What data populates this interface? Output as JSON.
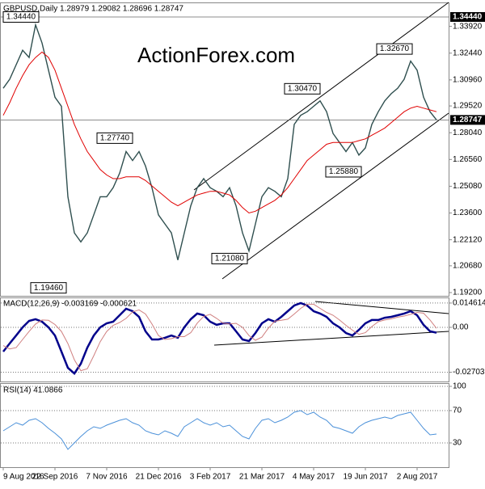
{
  "chart_data": [
    {
      "type": "line",
      "title": "GBPUSD,Daily  1.28979 1.29082 1.28696 1.28747",
      "watermark": "ActionForex.com",
      "ylim": [
        1.1902,
        1.352
      ],
      "yticks": [
        {
          "value": 1.3392,
          "label": "1.33920"
        },
        {
          "value": 1.3244,
          "label": "1.32440"
        },
        {
          "value": 1.3096,
          "label": "1.30960"
        },
        {
          "value": 1.2952,
          "label": "1.29520"
        },
        {
          "value": 1.2804,
          "label": "1.28040"
        },
        {
          "value": 1.2656,
          "label": "1.26560"
        },
        {
          "value": 1.2508,
          "label": "1.25080"
        },
        {
          "value": 1.236,
          "label": "1.23600"
        },
        {
          "value": 1.2212,
          "label": "1.22120"
        },
        {
          "value": 1.2068,
          "label": "1.20680"
        },
        {
          "value": 1.192,
          "label": "1.19200"
        }
      ],
      "price_levels": [
        {
          "value": 1.3444,
          "label": "1.34440"
        },
        {
          "value": 1.28747,
          "label": "1.28747"
        }
      ],
      "annotations": [
        {
          "value": 1.3444,
          "label": "1.34440"
        },
        {
          "value": 1.1946,
          "label": "1.19460"
        },
        {
          "value": 1.2774,
          "label": "1.27740"
        },
        {
          "value": 1.3047,
          "label": "1.30470"
        },
        {
          "value": 1.3267,
          "label": "1.32670"
        },
        {
          "value": 1.2588,
          "label": "1.25880"
        },
        {
          "value": 1.2108,
          "label": "1.21080"
        }
      ],
      "series": [
        {
          "color": "#2f4f4f",
          "values": [
            1.305,
            1.31,
            1.318,
            1.326,
            1.322,
            1.34,
            1.33,
            1.315,
            1.3,
            1.295,
            1.245,
            1.225,
            1.22,
            1.225,
            1.235,
            1.245,
            1.245,
            1.25,
            1.258,
            1.27,
            1.265,
            1.27,
            1.262,
            1.25,
            1.235,
            1.23,
            1.225,
            1.21,
            1.225,
            1.24,
            1.25,
            1.255,
            1.25,
            1.248,
            1.245,
            1.25,
            1.24,
            1.225,
            1.215,
            1.23,
            1.245,
            1.25,
            1.248,
            1.245,
            1.255,
            1.285,
            1.29,
            1.292,
            1.295,
            1.298,
            1.292,
            1.28,
            1.275,
            1.27,
            1.275,
            1.268,
            1.272,
            1.285,
            1.292,
            1.298,
            1.302,
            1.305,
            1.31,
            1.32,
            1.315,
            1.3,
            1.292,
            1.2875
          ]
        },
        {
          "color": "#e00000",
          "values": [
            1.29,
            1.297,
            1.305,
            1.312,
            1.318,
            1.322,
            1.325,
            1.322,
            1.315,
            1.305,
            1.295,
            1.285,
            1.277,
            1.27,
            1.265,
            1.26,
            1.257,
            1.255,
            1.255,
            1.256,
            1.256,
            1.256,
            1.254,
            1.251,
            1.248,
            1.245,
            1.242,
            1.24,
            1.242,
            1.244,
            1.246,
            1.247,
            1.248,
            1.248,
            1.247,
            1.246,
            1.243,
            1.239,
            1.236,
            1.237,
            1.239,
            1.241,
            1.243,
            1.246,
            1.25,
            1.255,
            1.26,
            1.265,
            1.268,
            1.271,
            1.274,
            1.275,
            1.275,
            1.275,
            1.275,
            1.276,
            1.277,
            1.279,
            1.281,
            1.283,
            1.286,
            1.289,
            1.292,
            1.294,
            1.295,
            1.294,
            1.293,
            1.292
          ]
        }
      ]
    },
    {
      "type": "line",
      "title": "MACD(12,26,9) -0.003169 -0.000621",
      "ylim": [
        -0.0326,
        0.0175
      ],
      "yticks": [
        0.014614,
        {
          "value": 0,
          "label": "0.00"
        },
        -0.027031
      ],
      "grid": true,
      "series": [
        {
          "color": "#00008b",
          "values": [
            -0.0146,
            -0.0097,
            -0.0049,
            0,
            0.0039,
            0.0049,
            0.0034,
            0,
            -0.0049,
            -0.0146,
            -0.0244,
            -0.0278,
            -0.0219,
            -0.0122,
            -0.0049,
            0,
            0.0024,
            0.0034,
            0.0073,
            0.0112,
            0.0097,
            0.0063,
            -0.0024,
            -0.0073,
            -0.0073,
            -0.0063,
            -0.0049,
            -0.0063,
            0,
            0.0049,
            0.0083,
            0.0073,
            0.0034,
            0.0015,
            0.0024,
            0.0024,
            -0.0024,
            -0.0073,
            -0.0083,
            -0.0034,
            0.0024,
            0.0049,
            0.0034,
            0.0063,
            0.0097,
            0.0131,
            0.0146,
            0.0131,
            0.0097,
            0.0083,
            0.0063,
            0.0024,
            0,
            -0.0034,
            -0.0049,
            -0.0015,
            0.0024,
            0.0044,
            0.0044,
            0.0058,
            0.0063,
            0.0073,
            0.0083,
            0.0097,
            0.0073,
            0.0015,
            -0.0024,
            -0.0032
          ]
        },
        {
          "color": "#d08080",
          "values": [
            -0.011,
            -0.013,
            -0.0122,
            -0.0073,
            -0.0025,
            0.002,
            0.0044,
            0.0042,
            0.0017,
            -0.0025,
            -0.0098,
            -0.0195,
            -0.0261,
            -0.0249,
            -0.0171,
            -0.0086,
            -0.0025,
            0.0012,
            0.0029,
            0.0054,
            0.0093,
            0.0105,
            0.008,
            0.002,
            -0.0049,
            -0.0073,
            -0.0068,
            -0.0056,
            -0.0056,
            -0.0032,
            0.0025,
            0.0066,
            0.0078,
            0.0054,
            0.0025,
            0.002,
            0.0024,
            0,
            -0.0049,
            -0.0078,
            -0.0059,
            -0.0005,
            0.0037,
            0.0042,
            0.0049,
            0.008,
            0.0114,
            0.0139,
            0.0139,
            0.0114,
            0.009,
            0.0073,
            0.0044,
            0.0012,
            -0.0017,
            -0.0042,
            -0.0032,
            0.0005,
            0.0034,
            0.0044,
            0.0051,
            0.0061,
            0.0068,
            0.0078,
            0.009,
            0.0085,
            0.0044,
            -0.0006
          ]
        }
      ]
    },
    {
      "type": "line",
      "title": "RSI(14) 41.0866",
      "ylim": [
        0,
        103
      ],
      "yticks": [
        100,
        70,
        30
      ],
      "grid": true,
      "categories": [
        "9 Aug 2016",
        null,
        null,
        null,
        null,
        null,
        null,
        null,
        "22 Sep 2016",
        null,
        null,
        null,
        null,
        null,
        null,
        null,
        "7 Nov 2016",
        null,
        null,
        null,
        null,
        null,
        null,
        null,
        "21 Dec 2016",
        null,
        null,
        null,
        null,
        null,
        null,
        null,
        "3 Feb 2017",
        null,
        null,
        null,
        null,
        null,
        null,
        null,
        "21 Mar 2017",
        null,
        null,
        null,
        null,
        null,
        null,
        null,
        "4 May 2017",
        null,
        null,
        null,
        null,
        null,
        null,
        null,
        "19 Jun 2017",
        null,
        null,
        null,
        null,
        null,
        null,
        null,
        "2 Aug 2017",
        null,
        null,
        null
      ],
      "series": [
        {
          "color": "#4a90d9",
          "values": [
            45,
            50,
            55,
            52,
            58,
            60,
            55,
            48,
            42,
            35,
            22,
            30,
            38,
            45,
            50,
            48,
            52,
            55,
            58,
            60,
            55,
            52,
            45,
            42,
            40,
            45,
            42,
            38,
            50,
            55,
            60,
            55,
            52,
            55,
            50,
            52,
            45,
            38,
            35,
            48,
            58,
            60,
            55,
            58,
            62,
            68,
            70,
            65,
            68,
            62,
            58,
            50,
            48,
            45,
            42,
            50,
            55,
            58,
            60,
            62,
            60,
            64,
            66,
            68,
            58,
            48,
            40,
            41
          ]
        }
      ]
    }
  ]
}
